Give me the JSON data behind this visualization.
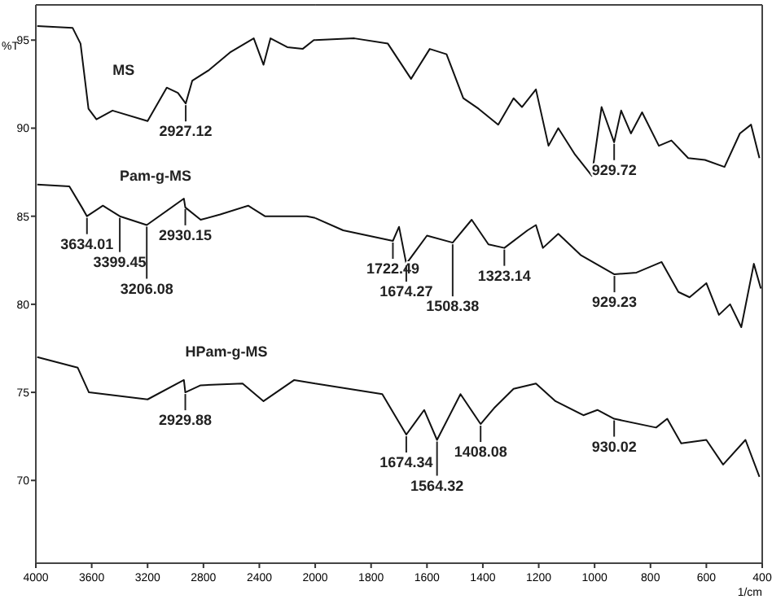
{
  "chart_data": [
    {
      "type": "line",
      "ylabel": "%T",
      "xlim": [
        4000,
        2000
      ],
      "xticks": [
        4000,
        3600,
        3200,
        2800,
        2400,
        2000
      ],
      "ylim": [
        65.3,
        97
      ],
      "yticks": [
        70,
        75,
        80,
        85,
        90,
        95
      ],
      "marker": "none",
      "line_style": "solid",
      "series": [
        {
          "name": "MS",
          "color": "#111111",
          "x": [
            3990,
            3737,
            3680,
            3623,
            3566,
            3451,
            3200,
            3063,
            2983,
            2927,
            2880,
            2760,
            2610,
            2440,
            2370,
            2320,
            2200,
            2090,
            2010,
            2000
          ],
          "values": [
            95.8,
            95.7,
            94.8,
            91.1,
            90.5,
            91.0,
            90.4,
            92.3,
            92.0,
            91.4,
            92.7,
            93.3,
            94.3,
            95.1,
            93.6,
            95.1,
            94.6,
            94.5,
            95.0,
            95.0
          ]
        },
        {
          "name": "Pam-g-MS",
          "color": "#111111",
          "x": [
            3990,
            3760,
            3670,
            3634,
            3520,
            3399,
            3206,
            2940,
            2930,
            2820,
            2680,
            2480,
            2360,
            2060,
            2000
          ],
          "values": [
            86.8,
            86.7,
            85.5,
            85.0,
            85.6,
            85.0,
            84.5,
            86.0,
            85.5,
            84.8,
            85.1,
            85.6,
            85.0,
            85.0,
            84.9
          ]
        },
        {
          "name": "HPam-g-MS",
          "color": "#111111",
          "x": [
            3990,
            3700,
            3620,
            3200,
            2940,
            2930,
            2820,
            2520,
            2370,
            2150,
            2000
          ],
          "values": [
            77.0,
            76.4,
            75.0,
            74.6,
            75.7,
            75.0,
            75.4,
            75.5,
            74.5,
            75.7,
            75.5
          ]
        }
      ],
      "annotations": [
        {
          "text": "2927.12",
          "x": 2927,
          "y": 91.4
        },
        {
          "text": "3634.01",
          "x": 3634,
          "y": 85.0
        },
        {
          "text": "3399.45",
          "x": 3399,
          "y": 85.0
        },
        {
          "text": "3206.08",
          "x": 3206,
          "y": 84.5
        },
        {
          "text": "2930.15",
          "x": 2930,
          "y": 85.5
        },
        {
          "text": "2929.88",
          "x": 2930,
          "y": 75.0
        }
      ]
    },
    {
      "type": "line",
      "xlabel": "1/cm",
      "xlim": [
        2000,
        400
      ],
      "xticks": [
        1800,
        1600,
        1400,
        1200,
        1000,
        800,
        600,
        400
      ],
      "ylim": [
        65.3,
        97
      ],
      "tick_labels": "x",
      "marker": "none",
      "line_style": "solid",
      "series": [
        {
          "color": "#111111",
          "x": [
            2000,
            1860,
            1740,
            1657,
            1590,
            1530,
            1470,
            1415,
            1345,
            1290,
            1260,
            1210,
            1165,
            1130,
            1070,
            1010,
            975,
            930,
            905,
            870,
            830,
            770,
            725,
            665,
            605,
            535,
            480,
            440,
            410
          ],
          "values": [
            95.0,
            95.1,
            94.8,
            92.8,
            94.5,
            94.2,
            91.7,
            91.1,
            90.2,
            91.7,
            91.2,
            92.2,
            89.0,
            90.0,
            88.5,
            87.3,
            91.2,
            89.2,
            91.0,
            89.7,
            90.9,
            89.0,
            89.3,
            88.3,
            88.2,
            87.8,
            89.7,
            90.2,
            88.3
          ]
        },
        {
          "color": "#111111",
          "x": [
            2000,
            1900,
            1722,
            1700,
            1674,
            1600,
            1508,
            1440,
            1380,
            1323,
            1240,
            1210,
            1185,
            1130,
            1050,
            929,
            850,
            760,
            700,
            660,
            600,
            555,
            515,
            475,
            430,
            405
          ],
          "values": [
            84.9,
            84.2,
            83.6,
            84.4,
            82.3,
            83.9,
            83.5,
            84.8,
            83.4,
            83.2,
            84.2,
            84.5,
            83.2,
            84.0,
            82.8,
            81.7,
            81.8,
            82.4,
            80.7,
            80.4,
            81.2,
            79.4,
            80.0,
            78.7,
            82.3,
            80.9
          ]
        },
        {
          "color": "#111111",
          "x": [
            2000,
            1760,
            1674,
            1610,
            1564,
            1480,
            1408,
            1360,
            1290,
            1210,
            1140,
            1040,
            990,
            930,
            780,
            740,
            690,
            600,
            540,
            460,
            410
          ],
          "values": [
            75.5,
            74.9,
            72.6,
            74.0,
            72.3,
            74.9,
            73.2,
            74.1,
            75.2,
            75.5,
            74.5,
            73.7,
            74.0,
            73.5,
            73.0,
            73.5,
            72.1,
            72.3,
            70.9,
            72.3,
            70.2
          ]
        }
      ],
      "annotations": [
        {
          "text": "929.72",
          "x": 930,
          "y": 89.2
        },
        {
          "text": "1722.49",
          "x": 1722,
          "y": 83.6
        },
        {
          "text": "1674.27",
          "x": 1674,
          "y": 82.3
        },
        {
          "text": "1508.38",
          "x": 1508,
          "y": 83.5
        },
        {
          "text": "1323.14",
          "x": 1323,
          "y": 83.2
        },
        {
          "text": "929.23",
          "x": 929,
          "y": 81.7
        },
        {
          "text": "1674.34",
          "x": 1674,
          "y": 72.6
        },
        {
          "text": "1564.32",
          "x": 1564,
          "y": 72.3
        },
        {
          "text": "1408.08",
          "x": 1408,
          "y": 73.2
        },
        {
          "text": "930.02",
          "x": 930,
          "y": 73.5
        }
      ]
    }
  ]
}
